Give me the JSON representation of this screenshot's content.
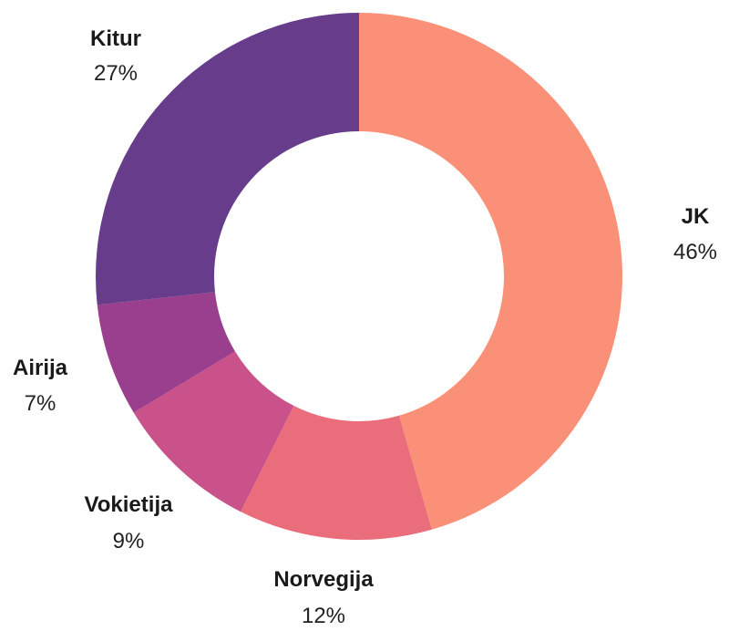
{
  "chart_data": {
    "type": "pie",
    "donut": true,
    "legend": "none",
    "slices": [
      {
        "label": "JK",
        "value": 46,
        "value_label": "46%",
        "color": "#fa9077"
      },
      {
        "label": "Norvegija",
        "value": 12,
        "value_label": "12%",
        "color": "#e96d7a"
      },
      {
        "label": "Vokietija",
        "value": 9,
        "value_label": "9%",
        "color": "#c9528a"
      },
      {
        "label": "Airija",
        "value": 7,
        "value_label": "7%",
        "color": "#9a3f8d"
      },
      {
        "label": "Kitur",
        "value": 27,
        "value_label": "27%",
        "color": "#673d8b"
      }
    ]
  }
}
